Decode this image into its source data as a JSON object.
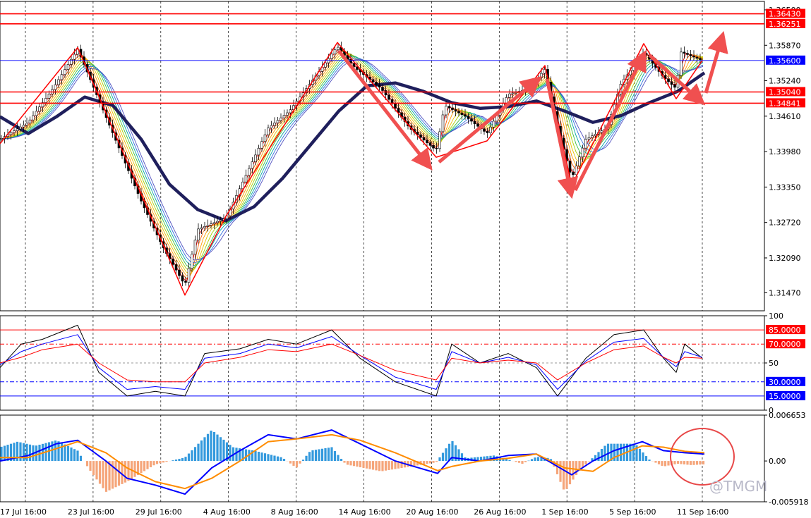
{
  "watermark": "@TMGM",
  "colors": {
    "bull": "#ffffff",
    "bear": "#000000",
    "red_line": "#ff0000",
    "blue_line": "#0000ff",
    "ma_slow": "#1f1f5c",
    "macd_pos": "#3399dd",
    "macd_neg": "#f5a57a",
    "macd_line": "#0000ff",
    "signal_line": "#ff8c00",
    "annotation": "#f05050"
  },
  "chart_data": [
    {
      "type": "candlestick",
      "name": "price",
      "ylim": [
        1.3115,
        1.3665
      ],
      "axis_ticks": [
        "1.36500",
        "1.35870",
        "1.35240",
        "1.34610",
        "1.33980",
        "1.33350",
        "1.32720",
        "1.32090",
        "1.31470"
      ],
      "axis_tick_values": [
        1.365,
        1.3587,
        1.3524,
        1.3461,
        1.3398,
        1.3335,
        1.3272,
        1.3209,
        1.3147
      ],
      "levels": [
        {
          "label": "1.36430",
          "value": 1.3643,
          "color": "#ff0000"
        },
        {
          "label": "1.36251",
          "value": 1.36251,
          "color": "#ff0000"
        },
        {
          "label": "1.35600",
          "value": 1.356,
          "color": "#0000ff"
        },
        {
          "label": "1.35040",
          "value": 1.3504,
          "color": "#ff0000"
        },
        {
          "label": "1.34841",
          "value": 1.34841,
          "color": "#ff0000"
        }
      ],
      "x_labels": [
        "17 Jul 16:00",
        "23 Jul 16:00",
        "29 Jul 16:00",
        "4 Aug 16:00",
        "8 Aug 16:00",
        "14 Aug 16:00",
        "20 Aug 16:00",
        "26 Aug 16:00",
        "1 Sep 16:00",
        "5 Sep 16:00",
        "11 Sep 16:00"
      ],
      "zigzag": [
        [
          0,
          1.3412
        ],
        [
          110,
          1.3583
        ],
        [
          262,
          1.3143
        ],
        [
          320,
          1.3283
        ],
        [
          478,
          1.3592
        ],
        [
          618,
          1.3388
        ],
        [
          690,
          1.3417
        ],
        [
          772,
          1.3551
        ],
        [
          810,
          1.3338
        ],
        [
          912,
          1.359
        ],
        [
          958,
          1.3492
        ],
        [
          995,
          1.356
        ]
      ],
      "price_path": [
        [
          0,
          1.342
        ],
        [
          40,
          1.345
        ],
        [
          75,
          1.351
        ],
        [
          110,
          1.358
        ],
        [
          140,
          1.349
        ],
        [
          170,
          1.34
        ],
        [
          200,
          1.331
        ],
        [
          230,
          1.323
        ],
        [
          262,
          1.316
        ],
        [
          280,
          1.326
        ],
        [
          320,
          1.328
        ],
        [
          350,
          1.336
        ],
        [
          380,
          1.344
        ],
        [
          410,
          1.347
        ],
        [
          440,
          1.352
        ],
        [
          478,
          1.3585
        ],
        [
          500,
          1.355
        ],
        [
          540,
          1.351
        ],
        [
          580,
          1.344
        ],
        [
          618,
          1.34
        ],
        [
          630,
          1.348
        ],
        [
          660,
          1.346
        ],
        [
          690,
          1.343
        ],
        [
          720,
          1.35
        ],
        [
          750,
          1.351
        ],
        [
          772,
          1.3545
        ],
        [
          790,
          1.344
        ],
        [
          810,
          1.335
        ],
        [
          830,
          1.342
        ],
        [
          860,
          1.344
        ],
        [
          880,
          1.352
        ],
        [
          912,
          1.3575
        ],
        [
          940,
          1.353
        ],
        [
          958,
          1.351
        ],
        [
          965,
          1.3575
        ],
        [
          995,
          1.356
        ]
      ],
      "ma_slow": [
        [
          0,
          1.346
        ],
        [
          40,
          1.343
        ],
        [
          80,
          1.346
        ],
        [
          120,
          1.3495
        ],
        [
          160,
          1.348
        ],
        [
          200,
          1.342
        ],
        [
          240,
          1.334
        ],
        [
          280,
          1.3295
        ],
        [
          320,
          1.3275
        ],
        [
          360,
          1.33
        ],
        [
          400,
          1.335
        ],
        [
          440,
          1.341
        ],
        [
          480,
          1.347
        ],
        [
          520,
          1.3515
        ],
        [
          560,
          1.352
        ],
        [
          600,
          1.3505
        ],
        [
          640,
          1.3485
        ],
        [
          680,
          1.3475
        ],
        [
          720,
          1.3478
        ],
        [
          760,
          1.3488
        ],
        [
          800,
          1.347
        ],
        [
          840,
          1.345
        ],
        [
          880,
          1.3462
        ],
        [
          920,
          1.3485
        ],
        [
          960,
          1.3505
        ],
        [
          998,
          1.3538
        ]
      ]
    },
    {
      "type": "line",
      "name": "stochastic",
      "ylim": [
        0,
        100
      ],
      "axis_ticks": [
        "100",
        "50",
        "0"
      ],
      "axis_tick_values": [
        100,
        50,
        0
      ],
      "levels": [
        {
          "label": "85.0000",
          "value": 85,
          "color": "#ff0000"
        },
        {
          "label": "70.0000",
          "value": 70,
          "color": "#ff0000"
        },
        {
          "label": "30.0000",
          "value": 30,
          "color": "#0000ff"
        },
        {
          "label": "15.0000",
          "value": 15,
          "color": "#0000ff"
        }
      ],
      "series": [
        {
          "color": "#000000",
          "values": [
            [
              0,
              45
            ],
            [
              30,
              70
            ],
            [
              60,
              75
            ],
            [
              110,
              90
            ],
            [
              140,
              40
            ],
            [
              180,
              15
            ],
            [
              220,
              20
            ],
            [
              262,
              15
            ],
            [
              290,
              60
            ],
            [
              340,
              65
            ],
            [
              380,
              75
            ],
            [
              420,
              70
            ],
            [
              470,
              85
            ],
            [
              510,
              55
            ],
            [
              560,
              30
            ],
            [
              618,
              15
            ],
            [
              640,
              70
            ],
            [
              680,
              50
            ],
            [
              720,
              60
            ],
            [
              760,
              45
            ],
            [
              790,
              15
            ],
            [
              830,
              55
            ],
            [
              870,
              80
            ],
            [
              912,
              85
            ],
            [
              940,
              55
            ],
            [
              958,
              40
            ],
            [
              970,
              70
            ],
            [
              995,
              55
            ]
          ]
        },
        {
          "color": "#0000ff",
          "values": [
            [
              0,
              48
            ],
            [
              30,
              62
            ],
            [
              60,
              70
            ],
            [
              110,
              80
            ],
            [
              140,
              45
            ],
            [
              180,
              22
            ],
            [
              220,
              25
            ],
            [
              262,
              22
            ],
            [
              290,
              55
            ],
            [
              340,
              60
            ],
            [
              380,
              70
            ],
            [
              420,
              66
            ],
            [
              470,
              78
            ],
            [
              510,
              58
            ],
            [
              560,
              35
            ],
            [
              618,
              22
            ],
            [
              640,
              62
            ],
            [
              680,
              50
            ],
            [
              720,
              56
            ],
            [
              760,
              48
            ],
            [
              790,
              22
            ],
            [
              830,
              52
            ],
            [
              870,
              72
            ],
            [
              912,
              76
            ],
            [
              940,
              56
            ],
            [
              958,
              46
            ],
            [
              970,
              62
            ],
            [
              995,
              56
            ]
          ]
        },
        {
          "color": "#ff0000",
          "values": [
            [
              0,
              50
            ],
            [
              30,
              56
            ],
            [
              60,
              64
            ],
            [
              110,
              70
            ],
            [
              140,
              50
            ],
            [
              180,
              32
            ],
            [
              220,
              30
            ],
            [
              262,
              30
            ],
            [
              290,
              50
            ],
            [
              340,
              56
            ],
            [
              380,
              64
            ],
            [
              420,
              62
            ],
            [
              470,
              70
            ],
            [
              510,
              58
            ],
            [
              560,
              42
            ],
            [
              618,
              32
            ],
            [
              640,
              55
            ],
            [
              680,
              50
            ],
            [
              720,
              53
            ],
            [
              760,
              50
            ],
            [
              790,
              32
            ],
            [
              830,
              50
            ],
            [
              870,
              64
            ],
            [
              912,
              68
            ],
            [
              940,
              56
            ],
            [
              958,
              50
            ],
            [
              970,
              56
            ],
            [
              995,
              55
            ]
          ]
        }
      ]
    },
    {
      "type": "bar",
      "name": "macd",
      "ylim": [
        -0.005918,
        0.006653
      ],
      "axis_ticks": [
        "0.006653",
        "0.00",
        "-0.005918"
      ],
      "axis_tick_values": [
        0.006653,
        0,
        -0.005918
      ],
      "histogram": [
        [
          0,
          0.002
        ],
        [
          25,
          0.0028
        ],
        [
          50,
          0.0022
        ],
        [
          80,
          0.003
        ],
        [
          110,
          0.0015
        ],
        [
          125,
          -0.001
        ],
        [
          150,
          -0.0045
        ],
        [
          180,
          -0.003
        ],
        [
          220,
          -0.0005
        ],
        [
          262,
          0.0005
        ],
        [
          300,
          0.0045
        ],
        [
          330,
          0.002
        ],
        [
          360,
          0.0015
        ],
        [
          400,
          0.0005
        ],
        [
          420,
          -0.001
        ],
        [
          440,
          0.0015
        ],
        [
          470,
          0.002
        ],
        [
          490,
          -0.0005
        ],
        [
          540,
          -0.0015
        ],
        [
          600,
          -0.0005
        ],
        [
          618,
          -0.0002
        ],
        [
          640,
          0.003
        ],
        [
          660,
          0.0004
        ],
        [
          700,
          0.0008
        ],
        [
          740,
          -0.0004
        ],
        [
          760,
          0.0006
        ],
        [
          780,
          0.0004
        ],
        [
          800,
          -0.0045
        ],
        [
          820,
          -0.0015
        ],
        [
          860,
          0.0025
        ],
        [
          900,
          0.0025
        ],
        [
          920,
          0.0002
        ],
        [
          940,
          -0.0008
        ],
        [
          960,
          -0.0004
        ],
        [
          980,
          -0.0006
        ],
        [
          995,
          -0.0005
        ]
      ],
      "series": [
        {
          "color": "#0000ff",
          "values": [
            [
              0,
              0.0
            ],
            [
              40,
              0.0008
            ],
            [
              80,
              0.0025
            ],
            [
              110,
              0.003
            ],
            [
              150,
              0.0
            ],
            [
              180,
              -0.0025
            ],
            [
              220,
              -0.0035
            ],
            [
              262,
              -0.0048
            ],
            [
              300,
              -0.001
            ],
            [
              340,
              0.0015
            ],
            [
              380,
              0.0038
            ],
            [
              420,
              0.0032
            ],
            [
              470,
              0.0045
            ],
            [
              510,
              0.0025
            ],
            [
              560,
              0.0
            ],
            [
              620,
              -0.0018
            ],
            [
              640,
              0.0005
            ],
            [
              680,
              0.0
            ],
            [
              720,
              0.0008
            ],
            [
              760,
              0.001
            ],
            [
              810,
              -0.002
            ],
            [
              840,
              0.0
            ],
            [
              870,
              0.0015
            ],
            [
              910,
              0.0028
            ],
            [
              940,
              0.0015
            ],
            [
              970,
              0.0012
            ],
            [
              998,
              0.001
            ]
          ]
        },
        {
          "color": "#ff8c00",
          "values": [
            [
              0,
              0.0005
            ],
            [
              40,
              0.0005
            ],
            [
              80,
              0.0018
            ],
            [
              110,
              0.0028
            ],
            [
              150,
              0.0012
            ],
            [
              180,
              -0.001
            ],
            [
              220,
              -0.003
            ],
            [
              262,
              -0.004
            ],
            [
              300,
              -0.0025
            ],
            [
              340,
              0.0
            ],
            [
              380,
              0.0028
            ],
            [
              420,
              0.0032
            ],
            [
              470,
              0.0038
            ],
            [
              510,
              0.003
            ],
            [
              560,
              0.0012
            ],
            [
              620,
              -0.0014
            ],
            [
              640,
              -0.0008
            ],
            [
              680,
              0.0
            ],
            [
              720,
              0.0004
            ],
            [
              760,
              0.001
            ],
            [
              800,
              -0.001
            ],
            [
              840,
              -0.0015
            ],
            [
              870,
              0.0005
            ],
            [
              910,
              0.0022
            ],
            [
              940,
              0.002
            ],
            [
              970,
              0.0014
            ],
            [
              998,
              0.0012
            ]
          ]
        }
      ]
    }
  ]
}
